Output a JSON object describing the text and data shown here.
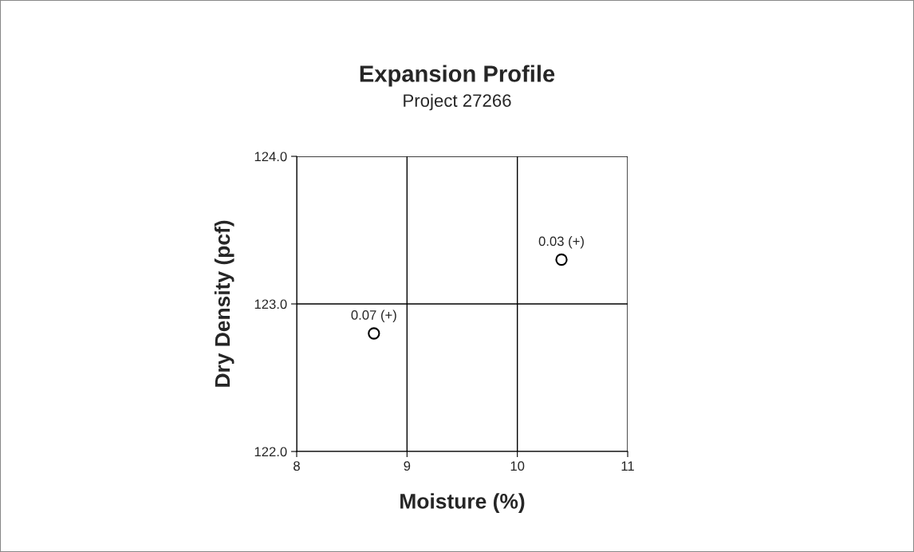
{
  "chart_data": {
    "type": "scatter",
    "title": "Expansion Profile",
    "subtitle": "Project 27266",
    "xlabel": "Moisture (%)",
    "ylabel": "Dry Density (pcf)",
    "x": [
      8.7,
      10.4
    ],
    "series": [
      {
        "color": "#000000",
        "values": [
          122.8,
          123.3
        ]
      }
    ],
    "marker": "circle",
    "xlim": [
      8,
      11
    ],
    "xticks": [
      8,
      9,
      10,
      11
    ],
    "ylim": [
      122,
      124
    ],
    "yticks": [
      {
        "value": 122,
        "label": "122.0"
      },
      {
        "value": 123,
        "label": "123.0"
      },
      {
        "value": 124,
        "label": "124.0"
      }
    ],
    "grid": true,
    "legend": false,
    "annotations": [
      {
        "text": "0.07 (+)",
        "x": 8.7,
        "y": 122.8
      },
      {
        "text": "0.03 (+)",
        "x": 10.4,
        "y": 123.3
      }
    ]
  }
}
